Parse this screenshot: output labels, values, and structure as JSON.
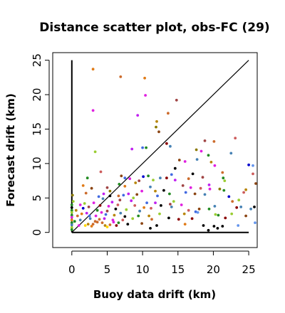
{
  "chart_data": {
    "type": "scatter",
    "title": "Distance scatter plot, obs-FC (29)",
    "xlabel": "Buoy data drift (km)",
    "ylabel": "Forecast drift (km)",
    "xlim": [
      -2.7,
      26.2
    ],
    "ylim": [
      -2.2,
      26.1
    ],
    "x_ticks": [
      0,
      5,
      10,
      15,
      20,
      25
    ],
    "y_ticks": [
      0,
      5,
      10,
      15,
      20,
      25
    ],
    "grid": false,
    "legend": "none",
    "reference_lines": [
      {
        "kind": "diagonal",
        "x": [
          0,
          25
        ],
        "y": [
          0,
          25
        ],
        "color": "#000000"
      },
      {
        "kind": "vertical",
        "x": [
          0,
          0
        ],
        "y": [
          0,
          25
        ],
        "color": "#000000"
      },
      {
        "kind": "horizontal",
        "x": [
          0,
          25
        ],
        "y": [
          0,
          0
        ],
        "color": "#000000"
      }
    ],
    "points": [
      {
        "x": 3.0,
        "y": 23.7,
        "color": "#e07b18"
      },
      {
        "x": 6.9,
        "y": 22.6,
        "color": "#cc6b2c"
      },
      {
        "x": 10.3,
        "y": 22.4,
        "color": "#e07b18"
      },
      {
        "x": 10.4,
        "y": 19.9,
        "color": "#e020e0"
      },
      {
        "x": 14.8,
        "y": 19.2,
        "color": "#a04545"
      },
      {
        "x": 3.0,
        "y": 17.7,
        "color": "#e020e0"
      },
      {
        "x": 13.6,
        "y": 17.3,
        "color": "#cc6b2c"
      },
      {
        "x": 9.3,
        "y": 17.0,
        "color": "#c020f0"
      },
      {
        "x": 12.0,
        "y": 16.1,
        "color": "#b8860b"
      },
      {
        "x": 11.9,
        "y": 15.3,
        "color": "#8b7a00"
      },
      {
        "x": 12.3,
        "y": 14.6,
        "color": "#8b4513"
      },
      {
        "x": 10.0,
        "y": 12.3,
        "color": "#4169e1"
      },
      {
        "x": 10.5,
        "y": 12.3,
        "color": "#228b22"
      },
      {
        "x": 8.5,
        "y": 12.1,
        "color": "#c020f0"
      },
      {
        "x": 13.4,
        "y": 12.9,
        "color": "#8b0000"
      },
      {
        "x": 13.9,
        "y": 12.5,
        "color": "#4682b4"
      },
      {
        "x": 3.3,
        "y": 11.7,
        "color": "#9acd32"
      },
      {
        "x": 17.6,
        "y": 12.0,
        "color": "#8b7a00"
      },
      {
        "x": 23.1,
        "y": 13.7,
        "color": "#cd5c5c"
      },
      {
        "x": 22.5,
        "y": 11.5,
        "color": "#4682b4"
      },
      {
        "x": 20.1,
        "y": 13.2,
        "color": "#cc6b2c"
      },
      {
        "x": 18.8,
        "y": 13.3,
        "color": "#a04545"
      },
      {
        "x": 18.3,
        "y": 11.8,
        "color": "#e020e0"
      },
      {
        "x": 19.3,
        "y": 11.2,
        "color": "#228b22"
      },
      {
        "x": 15.2,
        "y": 10.5,
        "color": "#8b4513"
      },
      {
        "x": 16.0,
        "y": 10.3,
        "color": "#e020e0"
      },
      {
        "x": 17.7,
        "y": 10.6,
        "color": "#4682b4"
      },
      {
        "x": 19.7,
        "y": 10.2,
        "color": "#b8860b"
      },
      {
        "x": 20.2,
        "y": 9.7,
        "color": "#e020e0"
      },
      {
        "x": 25.0,
        "y": 9.8,
        "color": "#0000cd"
      },
      {
        "x": 25.6,
        "y": 9.7,
        "color": "#6495ed"
      },
      {
        "x": 25.6,
        "y": 8.5,
        "color": "#cd5c5c"
      },
      {
        "x": 26.0,
        "y": 7.1,
        "color": "#8b4513"
      },
      {
        "x": 21.3,
        "y": 8.7,
        "color": "#cc6b2c"
      },
      {
        "x": 21.4,
        "y": 7.9,
        "color": "#228b22"
      },
      {
        "x": 21.6,
        "y": 7.5,
        "color": "#9acd32"
      },
      {
        "x": 18.5,
        "y": 8.0,
        "color": "#a04545"
      },
      {
        "x": 17.1,
        "y": 8.5,
        "color": "#000000"
      },
      {
        "x": 16.5,
        "y": 7.8,
        "color": "#cc6b2c"
      },
      {
        "x": 14.6,
        "y": 9.3,
        "color": "#000000"
      },
      {
        "x": 14.1,
        "y": 8.4,
        "color": "#4169e1"
      },
      {
        "x": 14.6,
        "y": 7.6,
        "color": "#c020f0"
      },
      {
        "x": 13.4,
        "y": 7.9,
        "color": "#8b0000"
      },
      {
        "x": 12.5,
        "y": 7.9,
        "color": "#4682b4"
      },
      {
        "x": 11.5,
        "y": 7.6,
        "color": "#9acd32"
      },
      {
        "x": 10.8,
        "y": 8.2,
        "color": "#228b22"
      },
      {
        "x": 10.1,
        "y": 8.1,
        "color": "#0000cd"
      },
      {
        "x": 9.5,
        "y": 7.5,
        "color": "#a04545"
      },
      {
        "x": 9.0,
        "y": 7.2,
        "color": "#b8860b"
      },
      {
        "x": 8.2,
        "y": 7.8,
        "color": "#e020e0"
      },
      {
        "x": 7.5,
        "y": 7.9,
        "color": "#4169e1"
      },
      {
        "x": 7.0,
        "y": 8.2,
        "color": "#8b4513"
      },
      {
        "x": 6.7,
        "y": 7.0,
        "color": "#228b22"
      },
      {
        "x": 4.1,
        "y": 8.8,
        "color": "#cd5c5c"
      },
      {
        "x": 2.2,
        "y": 7.9,
        "color": "#228b22"
      },
      {
        "x": 2.8,
        "y": 6.4,
        "color": "#8b4513"
      },
      {
        "x": 1.6,
        "y": 6.8,
        "color": "#e07b18"
      },
      {
        "x": 5.0,
        "y": 6.5,
        "color": "#a04545"
      },
      {
        "x": 5.4,
        "y": 6.0,
        "color": "#8b7a00"
      },
      {
        "x": 6.6,
        "y": 5.3,
        "color": "#cc6b2c"
      },
      {
        "x": 5.4,
        "y": 5.3,
        "color": "#000000"
      },
      {
        "x": 4.5,
        "y": 5.6,
        "color": "#c020f0"
      },
      {
        "x": 3.8,
        "y": 5.2,
        "color": "#4169e1"
      },
      {
        "x": 7.5,
        "y": 6.7,
        "color": "#e07b18"
      },
      {
        "x": 8.0,
        "y": 5.6,
        "color": "#c020f0"
      },
      {
        "x": 8.7,
        "y": 5.0,
        "color": "#9acd32"
      },
      {
        "x": 9.9,
        "y": 6.0,
        "color": "#e020e0"
      },
      {
        "x": 11.1,
        "y": 6.6,
        "color": "#4682b4"
      },
      {
        "x": 11.8,
        "y": 6.0,
        "color": "#b8860b"
      },
      {
        "x": 12.1,
        "y": 5.3,
        "color": "#4169e1"
      },
      {
        "x": 13.0,
        "y": 6.1,
        "color": "#000000"
      },
      {
        "x": 13.8,
        "y": 5.6,
        "color": "#228b22"
      },
      {
        "x": 15.7,
        "y": 6.8,
        "color": "#a04545"
      },
      {
        "x": 16.1,
        "y": 5.8,
        "color": "#4169e1"
      },
      {
        "x": 16.8,
        "y": 6.5,
        "color": "#e020e0"
      },
      {
        "x": 17.4,
        "y": 5.6,
        "color": "#8b4513"
      },
      {
        "x": 18.2,
        "y": 6.4,
        "color": "#cd5c5c"
      },
      {
        "x": 18.8,
        "y": 5.5,
        "color": "#4682b4"
      },
      {
        "x": 19.4,
        "y": 6.9,
        "color": "#c020f0"
      },
      {
        "x": 19.5,
        "y": 6.3,
        "color": "#e020e0"
      },
      {
        "x": 20.9,
        "y": 6.3,
        "color": "#8b7a00"
      },
      {
        "x": 21.5,
        "y": 6.1,
        "color": "#228b22"
      },
      {
        "x": 22.2,
        "y": 5.2,
        "color": "#0000cd"
      },
      {
        "x": 22.7,
        "y": 4.5,
        "color": "#cc6b2c"
      },
      {
        "x": 23.6,
        "y": 4.7,
        "color": "#9acd32"
      },
      {
        "x": 24.3,
        "y": 5.8,
        "color": "#cd5c5c"
      },
      {
        "x": 24.6,
        "y": 6.2,
        "color": "#b8860b"
      },
      {
        "x": 23.3,
        "y": 3.6,
        "color": "#8b0000"
      },
      {
        "x": 25.3,
        "y": 3.4,
        "color": "#4682b4"
      },
      {
        "x": 25.8,
        "y": 3.7,
        "color": "#000000"
      },
      {
        "x": 25.9,
        "y": 1.4,
        "color": "#6495ed"
      },
      {
        "x": 24.6,
        "y": 2.4,
        "color": "#8b4513"
      },
      {
        "x": 23.5,
        "y": 1.0,
        "color": "#6495ed"
      },
      {
        "x": 21.7,
        "y": 2.1,
        "color": "#8b0000"
      },
      {
        "x": 21.3,
        "y": 0.9,
        "color": "#000000"
      },
      {
        "x": 20.6,
        "y": 0.6,
        "color": "#000000"
      },
      {
        "x": 20.1,
        "y": 0.9,
        "color": "#000000"
      },
      {
        "x": 19.3,
        "y": 0.3,
        "color": "#000000"
      },
      {
        "x": 18.6,
        "y": 1.0,
        "color": "#000000"
      },
      {
        "x": 20.3,
        "y": 2.6,
        "color": "#9acd32"
      },
      {
        "x": 20.7,
        "y": 2.5,
        "color": "#228b22"
      },
      {
        "x": 19.4,
        "y": 3.4,
        "color": "#228b22"
      },
      {
        "x": 20.2,
        "y": 3.8,
        "color": "#4682b4"
      },
      {
        "x": 18.0,
        "y": 3.4,
        "color": "#8b4513"
      },
      {
        "x": 17.5,
        "y": 3.0,
        "color": "#4169e1"
      },
      {
        "x": 17.8,
        "y": 2.9,
        "color": "#6495ed"
      },
      {
        "x": 16.5,
        "y": 3.2,
        "color": "#cd5c5c"
      },
      {
        "x": 15.9,
        "y": 2.7,
        "color": "#b8860b"
      },
      {
        "x": 15.5,
        "y": 4.0,
        "color": "#e020e0"
      },
      {
        "x": 14.4,
        "y": 4.5,
        "color": "#9acd32"
      },
      {
        "x": 14.1,
        "y": 3.7,
        "color": "#4682b4"
      },
      {
        "x": 13.9,
        "y": 4.1,
        "color": "#a04545"
      },
      {
        "x": 13.7,
        "y": 2.1,
        "color": "#000000"
      },
      {
        "x": 12.6,
        "y": 3.9,
        "color": "#000000"
      },
      {
        "x": 12.4,
        "y": 2.7,
        "color": "#9acd32"
      },
      {
        "x": 11.8,
        "y": 4.3,
        "color": "#c020f0"
      },
      {
        "x": 11.2,
        "y": 3.5,
        "color": "#cd5c5c"
      },
      {
        "x": 10.9,
        "y": 2.4,
        "color": "#b8860b"
      },
      {
        "x": 11.3,
        "y": 1.9,
        "color": "#cc6b2c"
      },
      {
        "x": 11.1,
        "y": 0.6,
        "color": "#000000"
      },
      {
        "x": 10.2,
        "y": 3.6,
        "color": "#e07b18"
      },
      {
        "x": 10.6,
        "y": 4.3,
        "color": "#4169e1"
      },
      {
        "x": 9.6,
        "y": 3.1,
        "color": "#4682b4"
      },
      {
        "x": 9.4,
        "y": 2.4,
        "color": "#228b22"
      },
      {
        "x": 9.9,
        "y": 1.3,
        "color": "#8b4513"
      },
      {
        "x": 8.9,
        "y": 3.9,
        "color": "#cd5c5c"
      },
      {
        "x": 8.4,
        "y": 4.6,
        "color": "#c020f0"
      },
      {
        "x": 7.7,
        "y": 3.3,
        "color": "#9acd32"
      },
      {
        "x": 7.5,
        "y": 2.3,
        "color": "#000000"
      },
      {
        "x": 6.9,
        "y": 2.8,
        "color": "#4682b4"
      },
      {
        "x": 6.5,
        "y": 4.0,
        "color": "#cd5c5c"
      },
      {
        "x": 6.2,
        "y": 3.4,
        "color": "#000000"
      },
      {
        "x": 6.0,
        "y": 2.5,
        "color": "#b8860b"
      },
      {
        "x": 5.8,
        "y": 1.8,
        "color": "#e020e0"
      },
      {
        "x": 5.2,
        "y": 3.8,
        "color": "#e020e0"
      },
      {
        "x": 5.0,
        "y": 3.1,
        "color": "#a04545"
      },
      {
        "x": 4.8,
        "y": 2.6,
        "color": "#4169e1"
      },
      {
        "x": 4.6,
        "y": 2.0,
        "color": "#c020f0"
      },
      {
        "x": 4.2,
        "y": 2.9,
        "color": "#e020e0"
      },
      {
        "x": 4.0,
        "y": 3.9,
        "color": "#8b0000"
      },
      {
        "x": 3.6,
        "y": 3.2,
        "color": "#228b22"
      },
      {
        "x": 3.4,
        "y": 2.4,
        "color": "#e020e0"
      },
      {
        "x": 3.3,
        "y": 1.6,
        "color": "#cc6b2c"
      },
      {
        "x": 3.0,
        "y": 1.2,
        "color": "#cc6b2c"
      },
      {
        "x": 2.8,
        "y": 0.9,
        "color": "#e07b18"
      },
      {
        "x": 2.6,
        "y": 2.0,
        "color": "#4682b4"
      },
      {
        "x": 2.4,
        "y": 3.7,
        "color": "#a04545"
      },
      {
        "x": 2.1,
        "y": 2.8,
        "color": "#c020f0"
      },
      {
        "x": 1.8,
        "y": 4.2,
        "color": "#9acd32"
      },
      {
        "x": 1.6,
        "y": 3.5,
        "color": "#0000cd"
      },
      {
        "x": 1.4,
        "y": 2.7,
        "color": "#e07b18"
      },
      {
        "x": 1.2,
        "y": 1.8,
        "color": "#4682b4"
      },
      {
        "x": 1.0,
        "y": 1.0,
        "color": "#e020e0"
      },
      {
        "x": 0.8,
        "y": 2.4,
        "color": "#cc6b2c"
      },
      {
        "x": 0.6,
        "y": 3.2,
        "color": "#b8860b"
      },
      {
        "x": 0.4,
        "y": 1.6,
        "color": "#228b22"
      },
      {
        "x": 0.2,
        "y": 4.5,
        "color": "#9acd32"
      },
      {
        "x": 0.1,
        "y": 5.4,
        "color": "#8b7a00"
      },
      {
        "x": 0.0,
        "y": 4.0,
        "color": "#228b22"
      },
      {
        "x": 0.0,
        "y": 3.6,
        "color": "#000000"
      },
      {
        "x": 0.0,
        "y": 3.2,
        "color": "#228b22"
      },
      {
        "x": 0.0,
        "y": 2.9,
        "color": "#9acd32"
      },
      {
        "x": 0.0,
        "y": 2.5,
        "color": "#228b22"
      },
      {
        "x": 0.0,
        "y": 2.2,
        "color": "#e020e0"
      },
      {
        "x": 0.0,
        "y": 1.8,
        "color": "#e07b18"
      },
      {
        "x": 0.0,
        "y": 1.4,
        "color": "#228b22"
      },
      {
        "x": 0.0,
        "y": 1.1,
        "color": "#4682b4"
      },
      {
        "x": 0.0,
        "y": 0.7,
        "color": "#9acd32"
      },
      {
        "x": 0.0,
        "y": 0.4,
        "color": "#228b22"
      },
      {
        "x": 1.9,
        "y": 1.0,
        "color": "#ffd700"
      },
      {
        "x": 2.3,
        "y": 1.2,
        "color": "#b8860b"
      },
      {
        "x": 3.6,
        "y": 1.5,
        "color": "#cc6b2c"
      },
      {
        "x": 3.9,
        "y": 1.9,
        "color": "#cc6b2c"
      },
      {
        "x": 4.3,
        "y": 1.4,
        "color": "#cc6b2c"
      },
      {
        "x": 4.7,
        "y": 1.0,
        "color": "#b8860b"
      },
      {
        "x": 5.0,
        "y": 0.8,
        "color": "#ffd700"
      },
      {
        "x": 5.4,
        "y": 1.1,
        "color": "#cc6b2c"
      },
      {
        "x": 5.9,
        "y": 1.5,
        "color": "#e020e0"
      },
      {
        "x": 6.3,
        "y": 1.0,
        "color": "#8b0000"
      },
      {
        "x": 6.6,
        "y": 1.4,
        "color": "#228b22"
      },
      {
        "x": 7.2,
        "y": 1.8,
        "color": "#cd5c5c"
      },
      {
        "x": 7.9,
        "y": 1.2,
        "color": "#000000"
      },
      {
        "x": 8.6,
        "y": 2.0,
        "color": "#9acd32"
      },
      {
        "x": 2.5,
        "y": 2.4,
        "color": "#4169e1"
      },
      {
        "x": 3.1,
        "y": 4.3,
        "color": "#e020e0"
      },
      {
        "x": 4.4,
        "y": 4.9,
        "color": "#4682b4"
      },
      {
        "x": 5.7,
        "y": 4.4,
        "color": "#c020f0"
      },
      {
        "x": 6.8,
        "y": 4.7,
        "color": "#a04545"
      },
      {
        "x": 7.3,
        "y": 5.4,
        "color": "#4169e1"
      },
      {
        "x": 9.2,
        "y": 5.5,
        "color": "#8b4513"
      },
      {
        "x": 1.2,
        "y": 4.0,
        "color": "#e020e0"
      },
      {
        "x": 2.0,
        "y": 5.7,
        "color": "#cc6b2c"
      },
      {
        "x": 16.0,
        "y": 1.2,
        "color": "#e07b18"
      },
      {
        "x": 17.0,
        "y": 2.0,
        "color": "#8b0000"
      },
      {
        "x": 22.6,
        "y": 2.7,
        "color": "#9acd32"
      },
      {
        "x": 23.9,
        "y": 3.7,
        "color": "#4682b4"
      },
      {
        "x": 12.0,
        "y": 1.0,
        "color": "#000000"
      },
      {
        "x": 15.1,
        "y": 1.9,
        "color": "#8b0000"
      }
    ]
  }
}
